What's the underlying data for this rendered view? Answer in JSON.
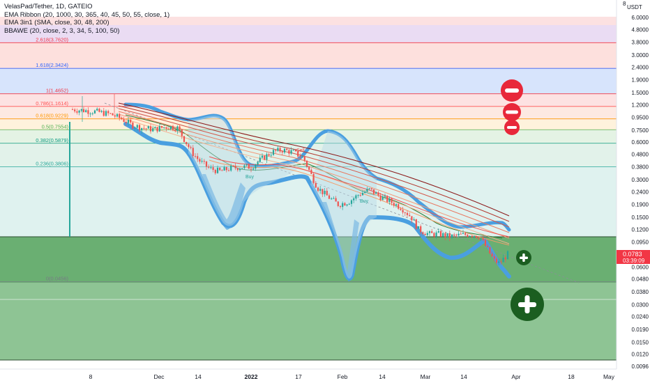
{
  "legend": {
    "title": "VelasPad/Tether, 1D, GATEIO",
    "indicator_1": "EMA Ribbon (20, 1000, 30, 365, 40, 45, 50, 55, close, 1)",
    "indicator_2": "EMA 3in1 (SMA, close, 30, 48, 200)",
    "indicator_3": "BBAWE (20, close, 2, 3, 34, 5, 100, 50)"
  },
  "price_axis": {
    "top_label_1": "8",
    "top_label_2": "USDT",
    "ticks": [
      "6.0000",
      "4.8000",
      "3.8000",
      "3.0000",
      "2.4000",
      "1.9000",
      "1.5000",
      "1.2000",
      "0.9500",
      "0.7500",
      "0.6000",
      "0.4800",
      "0.3800",
      "0.3000",
      "0.2400",
      "0.1900",
      "0.1500",
      "0.1200",
      "0.0950",
      "0.0600",
      "0.0480",
      "0.0380",
      "0.0300",
      "0.0240",
      "0.0190",
      "0.0150",
      "0.0120",
      "0.0096"
    ]
  },
  "price_tag": {
    "price": "0.0783",
    "countdown": "03:39:09",
    "color": "#f23645"
  },
  "time_axis": [
    "8",
    "Dec",
    "14",
    "2022",
    "17",
    "Feb",
    "14",
    "Mar",
    "14",
    "Apr",
    "18",
    "May"
  ],
  "colors": {
    "bull": "#26a69a",
    "bear": "#ef5350",
    "bb_fill": "#4aa3df",
    "green_zone": "#5fad6b",
    "circle_red": "#e8283a",
    "circle_green": "#1b5e20"
  },
  "chart_data": {
    "type": "candlestick",
    "symbol": "VelasPad/Tether",
    "interval": "1D",
    "exchange": "GATEIO",
    "y_scale": "log",
    "ylim": [
      0.0096,
      8
    ],
    "fib_levels": [
      {
        "label": "2.618(3.7620)",
        "value": 3.762,
        "color": "#f23645"
      },
      {
        "label": "1.618(2.3424)",
        "value": 2.3424,
        "color": "#2962ff"
      },
      {
        "label": "1(1.4652)",
        "value": 1.4652,
        "color": "#f23645"
      },
      {
        "label": "0.786(1.1614)",
        "value": 1.1614,
        "color": "#ff5252"
      },
      {
        "label": "0.618(0.9229)",
        "value": 0.9229,
        "color": "#ff9800"
      },
      {
        "label": "0.5(0.7554)",
        "value": 0.7554,
        "color": "#4caf50"
      },
      {
        "label": "0.382(0.5879)",
        "value": 0.5879,
        "color": "#089981"
      },
      {
        "label": "0.236(0.3806)",
        "value": 0.3806,
        "color": "#26a69a"
      },
      {
        "label": "0(0.0456)",
        "value": 0.0456,
        "color": "#787b86"
      }
    ],
    "signals": [
      {
        "label": "Buy",
        "color": "#26a69a"
      },
      {
        "label": "Buy",
        "color": "#26a69a"
      },
      {
        "label": "Sell",
        "color": "#ef5350"
      }
    ],
    "last_price": 0.0783
  }
}
